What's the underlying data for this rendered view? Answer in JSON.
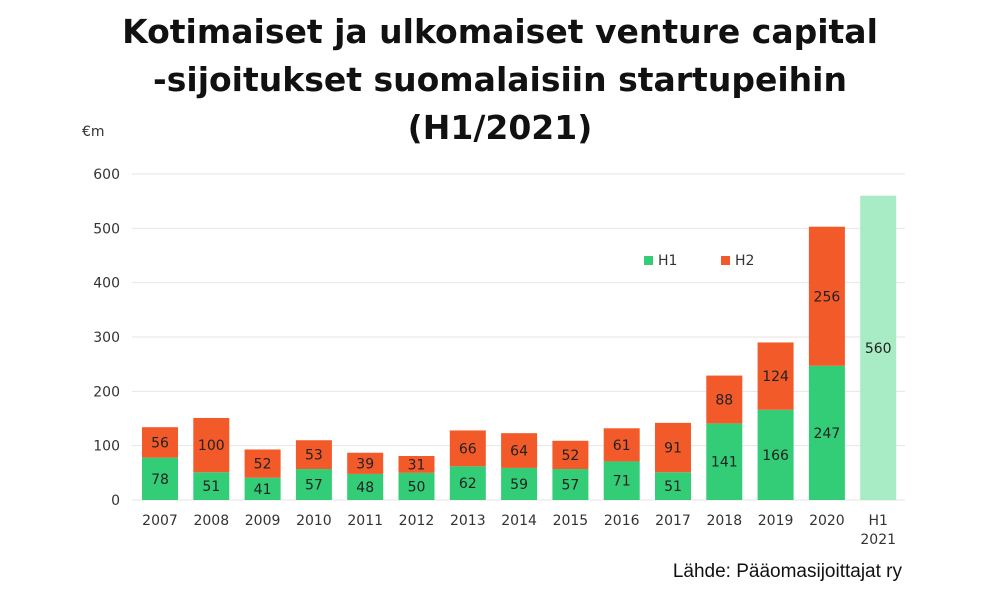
{
  "chart_data": {
    "type": "bar",
    "stacked": true,
    "title_lines": [
      "Kotimaiset ja ulkomaiset venture capital",
      "-sijoitukset suomalaisiin startupeihin",
      "(H1/2021)"
    ],
    "ylabel": "€m",
    "ylim": [
      0,
      600
    ],
    "yticks": [
      0,
      100,
      200,
      300,
      400,
      500,
      600
    ],
    "grid": true,
    "legend_position": "top-right",
    "categories": [
      "2007",
      "2008",
      "2009",
      "2010",
      "2011",
      "2012",
      "2013",
      "2014",
      "2015",
      "2016",
      "2017",
      "2018",
      "2019",
      "2020",
      "H1\n2021"
    ],
    "series": [
      {
        "name": "H1",
        "color": "#33cc77",
        "values": [
          78,
          51,
          41,
          57,
          48,
          50,
          62,
          59,
          57,
          71,
          51,
          141,
          166,
          247,
          560
        ]
      },
      {
        "name": "H2",
        "color": "#f25a2a",
        "values": [
          56,
          100,
          52,
          53,
          39,
          31,
          66,
          64,
          52,
          61,
          91,
          88,
          124,
          256,
          null
        ]
      }
    ],
    "highlight_color": "#a8ecc5",
    "highlight_index": 14
  },
  "source": "Lähde: Pääomasijoittajat ry"
}
